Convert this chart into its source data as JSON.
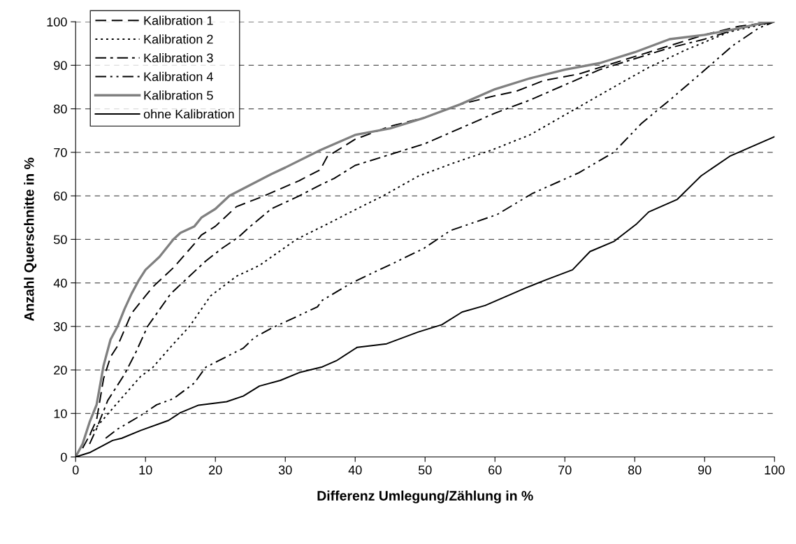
{
  "chart_data": {
    "type": "line",
    "xlabel": "Differenz Umlegung/Zählung in %",
    "ylabel": "Anzahl Querschnitte in %",
    "xlim": [
      0,
      100
    ],
    "xticks": [
      0,
      10,
      20,
      30,
      40,
      50,
      60,
      70,
      80,
      90,
      100
    ],
    "ylim": [
      0,
      100
    ],
    "yticks": [
      0,
      10,
      20,
      30,
      40,
      50,
      60,
      70,
      80,
      90,
      100
    ],
    "grid": "y",
    "legend": "top left",
    "marker": "none",
    "series": [
      {
        "name": "Kalibration 1",
        "color": "#000000",
        "line_style": "dashed",
        "x": [
          1,
          2,
          3,
          4,
          5,
          6,
          8,
          10,
          11,
          14,
          17,
          18,
          20,
          23,
          27,
          32,
          35,
          36,
          40,
          45,
          50,
          55,
          60,
          63,
          67,
          72,
          76,
          80,
          85,
          90,
          95,
          100
        ],
        "values": [
          2,
          5,
          8.5,
          18,
          23,
          25.5,
          33,
          37,
          39,
          43.5,
          49,
          51,
          53,
          57.5,
          60,
          63.5,
          66,
          69,
          73,
          76,
          78,
          81,
          83,
          84,
          86.5,
          88,
          90,
          92,
          94.5,
          97,
          99,
          100
        ]
      },
      {
        "name": "Kalibration 2",
        "color": "#000000",
        "line_style": "dotted",
        "x": [
          2,
          3.6,
          6.3,
          9.3,
          11,
          14,
          16.3,
          19.3,
          23,
          26.3,
          31.6,
          36.6,
          39,
          44,
          49,
          54,
          59.5,
          65,
          71,
          77,
          82,
          87.4,
          93.6,
          100
        ],
        "values": [
          5,
          8,
          13,
          18.5,
          20.5,
          26,
          30,
          37,
          41.5,
          44,
          50,
          54,
          56,
          60,
          64.5,
          67.5,
          70.5,
          74,
          79.5,
          85,
          89.5,
          93.6,
          97.7,
          100
        ]
      },
      {
        "name": "Kalibration 3",
        "color": "#000000",
        "line_style": "dashdot",
        "x": [
          2,
          3,
          4.6,
          7,
          8.6,
          10.3,
          13.6,
          15.6,
          18.6,
          21,
          23.3,
          25,
          28,
          32,
          35,
          37,
          40,
          45,
          50,
          55,
          60,
          65,
          70,
          75,
          80,
          85,
          90,
          95,
          100
        ],
        "values": [
          3,
          6.5,
          13,
          19,
          24,
          30,
          37.5,
          40.5,
          45,
          48,
          50.5,
          53,
          57,
          60,
          62.5,
          64,
          67,
          69.5,
          72,
          75.5,
          79,
          82,
          85.5,
          89,
          91.5,
          94,
          96,
          98.5,
          100
        ]
      },
      {
        "name": "Kalibration 4",
        "color": "#000000",
        "line_style": "dashdotdot",
        "x": [
          4.3,
          6,
          9.3,
          11.6,
          14,
          17,
          18.6,
          20.3,
          24,
          25.6,
          28.3,
          31.3,
          34.6,
          35.3,
          39.5,
          45.7,
          49.9,
          53.6,
          60.3,
          65.3,
          72,
          77,
          81,
          85.3,
          89.5,
          94,
          97.8,
          100
        ],
        "values": [
          4.3,
          6.4,
          9.5,
          12,
          13.4,
          17,
          20.6,
          22,
          25,
          27.5,
          29.8,
          32,
          34.5,
          36,
          40,
          44.7,
          48,
          52,
          55.7,
          60.5,
          65.3,
          70,
          76.7,
          82.4,
          88.2,
          94.5,
          98.6,
          100
        ]
      },
      {
        "name": "Kalibration 5",
        "color": "#808080",
        "line_style": "solid",
        "x": [
          0,
          1,
          2,
          3,
          4,
          5,
          6,
          7,
          8,
          9,
          10,
          12,
          14,
          15,
          17,
          18,
          20,
          22,
          25,
          28,
          30,
          35,
          40,
          45,
          50,
          55,
          60,
          65,
          70,
          75,
          80,
          85,
          90,
          95,
          99,
          100
        ],
        "values": [
          0,
          3,
          8,
          12,
          21,
          27,
          30,
          34,
          37.5,
          40.5,
          43,
          46,
          50,
          51.5,
          53,
          55,
          57,
          60,
          62.5,
          65,
          66.5,
          70.5,
          74,
          75.5,
          78,
          81,
          84.5,
          87,
          89,
          90.5,
          93,
          96,
          97,
          98.5,
          100,
          100
        ]
      },
      {
        "name": "ohne Kalibration",
        "color": "#000000",
        "line_style": "solid",
        "x": [
          0,
          2,
          5.3,
          6.6,
          9.3,
          13.3,
          15,
          17.6,
          21.6,
          24,
          26.3,
          29.3,
          32,
          35.3,
          37.3,
          40.3,
          44.5,
          49,
          52.4,
          55.3,
          58.6,
          64.5,
          67,
          71.1,
          73.6,
          77,
          80.3,
          82,
          86.1,
          89.5,
          93.6,
          100
        ],
        "values": [
          0,
          1,
          3.8,
          4.3,
          6.1,
          8.4,
          10.2,
          11.9,
          12.7,
          14,
          16.3,
          17.6,
          19.4,
          20.7,
          22.1,
          25.2,
          26,
          28.7,
          30.4,
          33.3,
          34.8,
          38.9,
          40.5,
          43,
          47.2,
          49.5,
          53.6,
          56.3,
          59.2,
          64.6,
          69.1,
          73.6
        ]
      }
    ]
  }
}
